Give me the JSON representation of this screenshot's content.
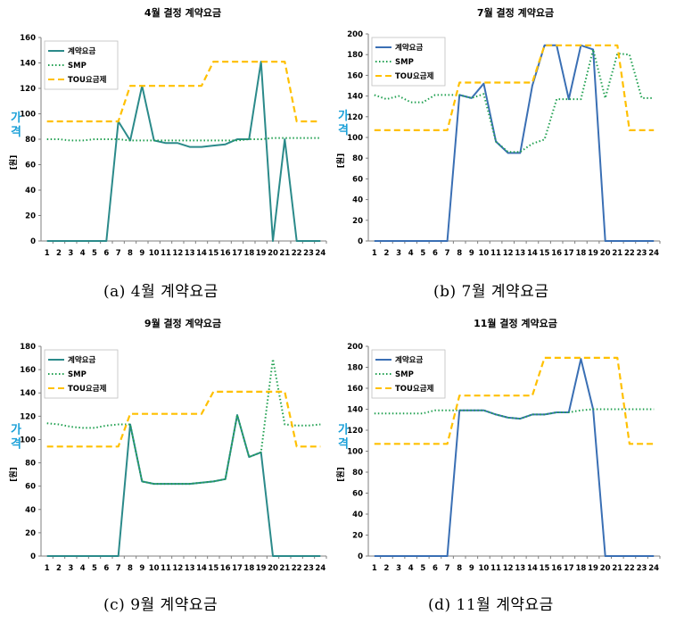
{
  "ylabel": "가격",
  "yunit": "[원]",
  "legend": [
    "계약요금",
    "SMP",
    "TOU요금제"
  ],
  "colors": {
    "contract": "#3a6fb4",
    "smp": "#20a050",
    "tou": "#ffc000",
    "contract_alt": "#2b8a8a"
  },
  "chart_data": [
    {
      "type": "line",
      "title": "4월 결정 계약요금",
      "caption": "(a) 4월 계약요금",
      "x": [
        1,
        2,
        3,
        4,
        5,
        6,
        7,
        8,
        9,
        10,
        11,
        12,
        13,
        14,
        15,
        16,
        17,
        18,
        19,
        20,
        21,
        22,
        23,
        24
      ],
      "ylim": [
        0,
        160
      ],
      "yticks": [
        0,
        20,
        40,
        60,
        80,
        100,
        120,
        140,
        160
      ],
      "series": [
        {
          "name": "계약요금",
          "values": [
            0,
            0,
            0,
            0,
            0,
            0,
            94,
            79,
            122,
            79,
            77,
            77,
            74,
            74,
            75,
            76,
            80,
            80,
            141,
            0,
            80,
            0,
            0,
            0
          ]
        },
        {
          "name": "SMP",
          "values": [
            80,
            80,
            79,
            79,
            80,
            80,
            80,
            79,
            79,
            79,
            79,
            79,
            79,
            79,
            79,
            79,
            79,
            80,
            80,
            81,
            81,
            81,
            81,
            81
          ]
        },
        {
          "name": "TOU요금제",
          "values": [
            94,
            94,
            94,
            94,
            94,
            94,
            94,
            122,
            122,
            122,
            122,
            122,
            122,
            122,
            141,
            141,
            141,
            141,
            141,
            141,
            141,
            94,
            94,
            94
          ]
        }
      ]
    },
    {
      "type": "line",
      "title": "7월 결정 계약요금",
      "caption": "(b) 7월 계약요금",
      "x": [
        1,
        2,
        3,
        4,
        5,
        6,
        7,
        8,
        9,
        10,
        11,
        12,
        13,
        14,
        15,
        16,
        17,
        18,
        19,
        20,
        21,
        22,
        23,
        24
      ],
      "ylim": [
        0,
        200
      ],
      "yticks": [
        0,
        20,
        40,
        60,
        80,
        100,
        120,
        140,
        160,
        180,
        200
      ],
      "series": [
        {
          "name": "계약요금",
          "values": [
            0,
            0,
            0,
            0,
            0,
            0,
            0,
            141,
            138,
            152,
            96,
            85,
            85,
            150,
            189,
            189,
            137,
            189,
            185,
            0,
            0,
            0,
            0,
            0
          ]
        },
        {
          "name": "SMP",
          "values": [
            141,
            137,
            140,
            134,
            134,
            141,
            141,
            141,
            138,
            142,
            96,
            86,
            86,
            94,
            98,
            137,
            137,
            137,
            185,
            138,
            181,
            180,
            138,
            138
          ]
        },
        {
          "name": "TOU요금제",
          "values": [
            107,
            107,
            107,
            107,
            107,
            107,
            107,
            153,
            153,
            153,
            153,
            153,
            153,
            153,
            189,
            189,
            189,
            189,
            189,
            189,
            189,
            107,
            107,
            107
          ]
        }
      ]
    },
    {
      "type": "line",
      "title": "9월 결정 계약요금",
      "caption": "(c) 9월 계약요금",
      "x": [
        1,
        2,
        3,
        4,
        5,
        6,
        7,
        8,
        9,
        10,
        11,
        12,
        13,
        14,
        15,
        16,
        17,
        18,
        19,
        20,
        21,
        22,
        23,
        24
      ],
      "ylim": [
        0,
        180
      ],
      "yticks": [
        0,
        20,
        40,
        60,
        80,
        100,
        120,
        140,
        160,
        180
      ],
      "series": [
        {
          "name": "계약요금",
          "values": [
            0,
            0,
            0,
            0,
            0,
            0,
            0,
            113,
            64,
            62,
            62,
            62,
            62,
            63,
            64,
            66,
            121,
            85,
            89,
            0,
            0,
            0,
            0,
            0
          ]
        },
        {
          "name": "SMP",
          "values": [
            114,
            113,
            111,
            110,
            110,
            112,
            113,
            113,
            64,
            62,
            62,
            62,
            62,
            63,
            64,
            66,
            121,
            85,
            89,
            169,
            113,
            112,
            112,
            113
          ]
        },
        {
          "name": "TOU요금제",
          "values": [
            94,
            94,
            94,
            94,
            94,
            94,
            94,
            122,
            122,
            122,
            122,
            122,
            122,
            122,
            141,
            141,
            141,
            141,
            141,
            141,
            141,
            94,
            94,
            94
          ]
        }
      ]
    },
    {
      "type": "line",
      "title": "11월 결정 계약요금",
      "caption": "(d) 11월 계약요금",
      "x": [
        1,
        2,
        3,
        4,
        5,
        6,
        7,
        8,
        9,
        10,
        11,
        12,
        13,
        14,
        15,
        16,
        17,
        18,
        19,
        20,
        21,
        22,
        23,
        24
      ],
      "ylim": [
        0,
        200
      ],
      "yticks": [
        0,
        20,
        40,
        60,
        80,
        100,
        120,
        140,
        160,
        180,
        200
      ],
      "series": [
        {
          "name": "계약요금",
          "values": [
            0,
            0,
            0,
            0,
            0,
            0,
            0,
            139,
            139,
            139,
            135,
            132,
            131,
            135,
            135,
            137,
            137,
            188,
            140,
            0,
            0,
            0,
            0,
            0
          ]
        },
        {
          "name": "SMP",
          "values": [
            136,
            136,
            136,
            136,
            136,
            139,
            139,
            139,
            139,
            139,
            135,
            132,
            131,
            135,
            135,
            137,
            137,
            139,
            140,
            140,
            140,
            140,
            140,
            140
          ]
        },
        {
          "name": "TOU요금제",
          "values": [
            107,
            107,
            107,
            107,
            107,
            107,
            107,
            153,
            153,
            153,
            153,
            153,
            153,
            153,
            189,
            189,
            189,
            189,
            189,
            189,
            189,
            107,
            107,
            107
          ]
        }
      ]
    }
  ]
}
